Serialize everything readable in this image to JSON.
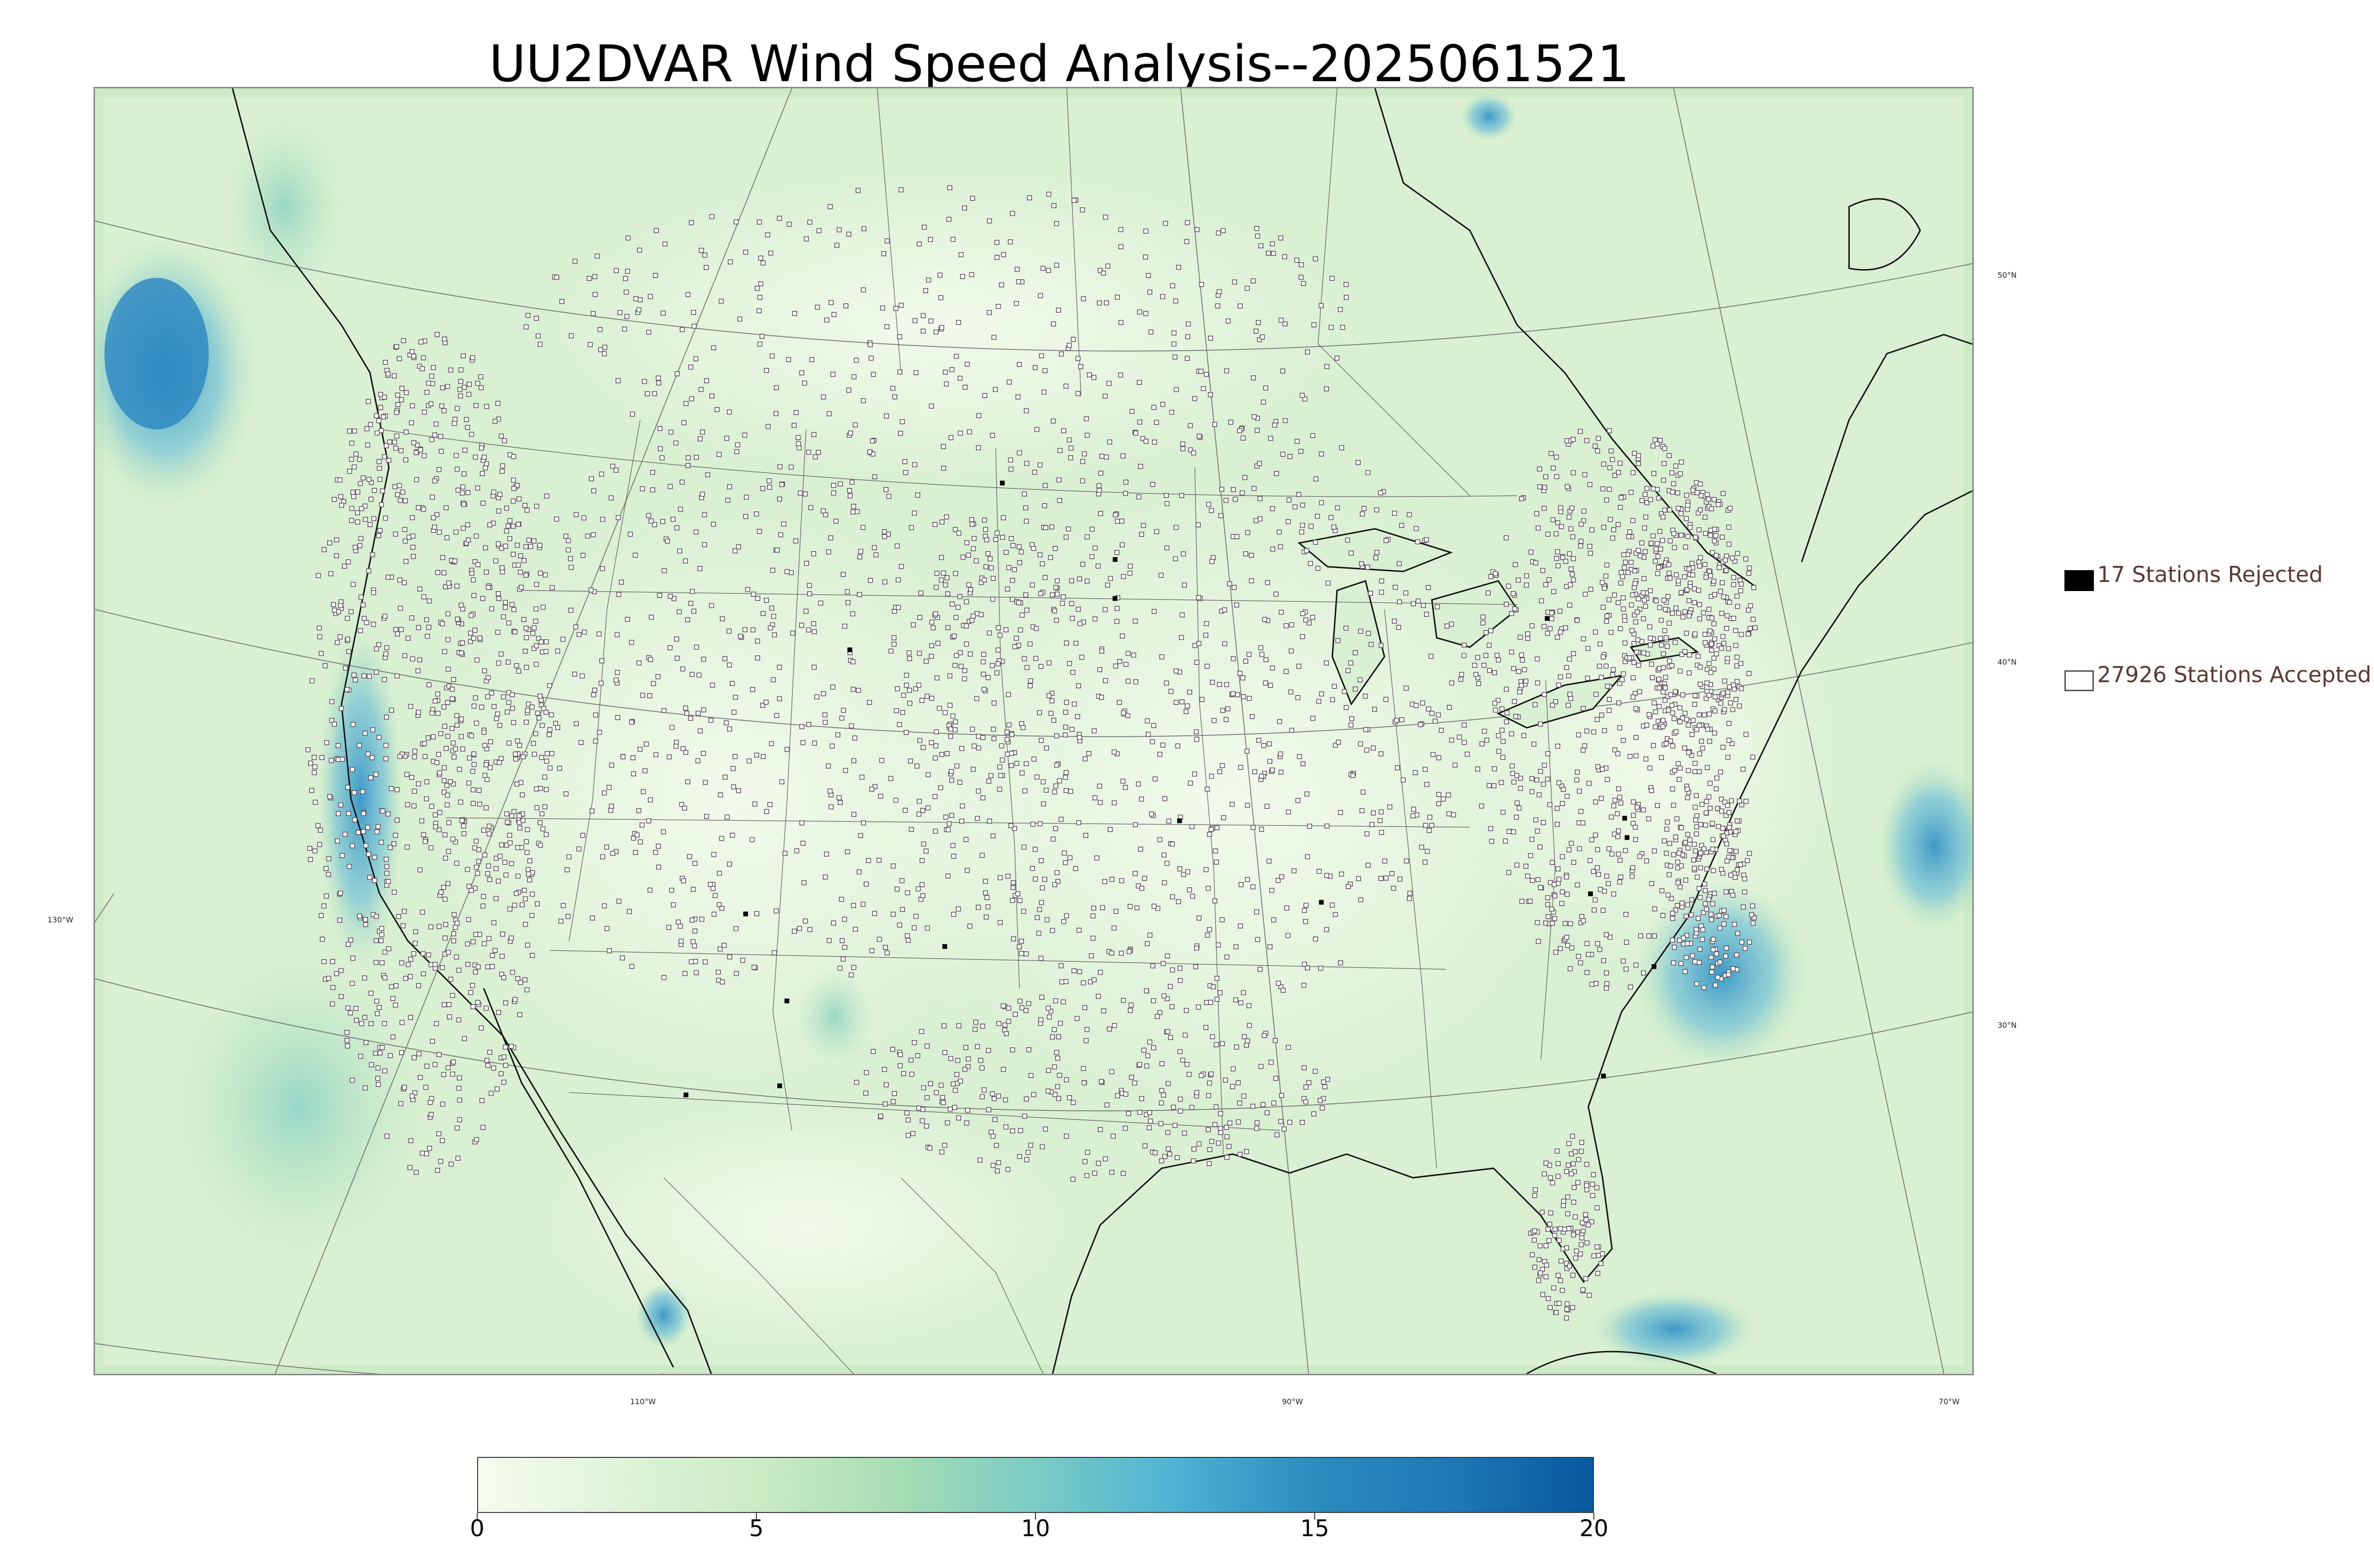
{
  "title": "UU2DVAR Wind Speed Analysis--2025061521",
  "legend": {
    "rejected_label": "17 Stations Rejected",
    "accepted_label": "27926 Stations Accepted",
    "rejected_count": 17,
    "accepted_count": 27926,
    "rejected_color": "#000000",
    "accepted_color": "#ffffff"
  },
  "graticule_labels": {
    "lat_50": "50°N",
    "lat_40": "40°N",
    "lat_30": "30°N",
    "lon_130": "130°W",
    "lon_110": "110°W",
    "lon_90": "90°W",
    "lon_70": "70°W"
  },
  "colorbar": {
    "min": 0,
    "max": 20,
    "tick_labels": [
      "0",
      "5",
      "10",
      "15",
      "20"
    ],
    "colors": [
      "#f7fcf0",
      "#e0f3db",
      "#ccebc5",
      "#a8ddb5",
      "#7bccc4",
      "#4eb3d3",
      "#2b8cbe",
      "#1f78b4",
      "#08589e"
    ]
  },
  "map_palette": {
    "land": "#eaf6e3",
    "ocean": "#d6efd0",
    "coast": "#111111",
    "border": "#555555",
    "high_wind": "#2c8fc6"
  }
}
